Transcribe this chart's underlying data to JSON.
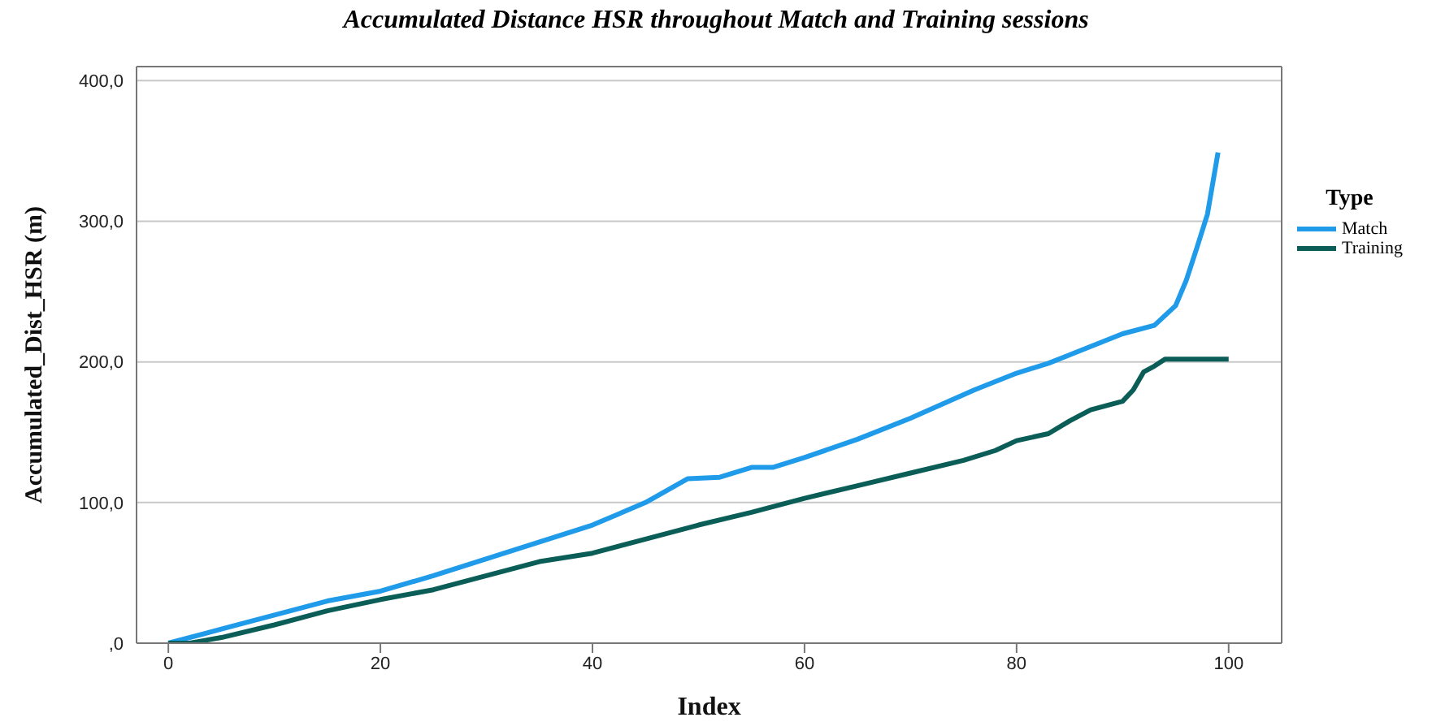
{
  "chart_data": {
    "type": "line",
    "title": "Accumulated Distance HSR throughout Match and Training sessions",
    "xlabel": "Index",
    "ylabel": "Accumulated_Dist_HSR (m)",
    "legend_title": "Type",
    "legend": "right",
    "grid": "y",
    "line_style": "solid",
    "marker": "none",
    "xlim": [
      -3,
      105
    ],
    "xticks": [
      0,
      20,
      40,
      60,
      80,
      100
    ],
    "ylim": [
      0,
      410
    ],
    "yticks": [
      {
        "value": 0,
        "label": ",0"
      },
      {
        "value": 100,
        "label": "100,0"
      },
      {
        "value": 200,
        "label": "200,0"
      },
      {
        "value": 300,
        "label": "300,0"
      },
      {
        "value": 400,
        "label": "400,0"
      }
    ],
    "series": [
      {
        "name": "Match",
        "color": "#1f9bea",
        "x": [
          0,
          5,
          10,
          15,
          20,
          25,
          30,
          35,
          40,
          45,
          49,
          52,
          55,
          57,
          60,
          65,
          70,
          76,
          80,
          83,
          85,
          90,
          93,
          95,
          96,
          97,
          98,
          99
        ],
        "values": [
          0,
          10,
          20,
          30,
          37,
          48,
          60,
          72,
          84,
          100,
          117,
          118,
          125,
          125,
          132,
          145,
          160,
          180,
          192,
          199,
          205,
          220,
          226,
          240,
          258,
          281,
          305,
          349
        ]
      },
      {
        "name": "Training",
        "color": "#0b5e57",
        "x": [
          0,
          2,
          5,
          10,
          15,
          20,
          25,
          30,
          35,
          40,
          45,
          50,
          55,
          60,
          65,
          70,
          75,
          78,
          80,
          83,
          85,
          87,
          90,
          91,
          92,
          93,
          94,
          100
        ],
        "values": [
          0,
          0,
          4,
          13,
          23,
          31,
          38,
          48,
          58,
          64,
          74,
          84,
          93,
          103,
          112,
          121,
          130,
          137,
          144,
          149,
          158,
          166,
          172,
          180,
          193,
          197,
          202,
          202
        ]
      }
    ]
  }
}
